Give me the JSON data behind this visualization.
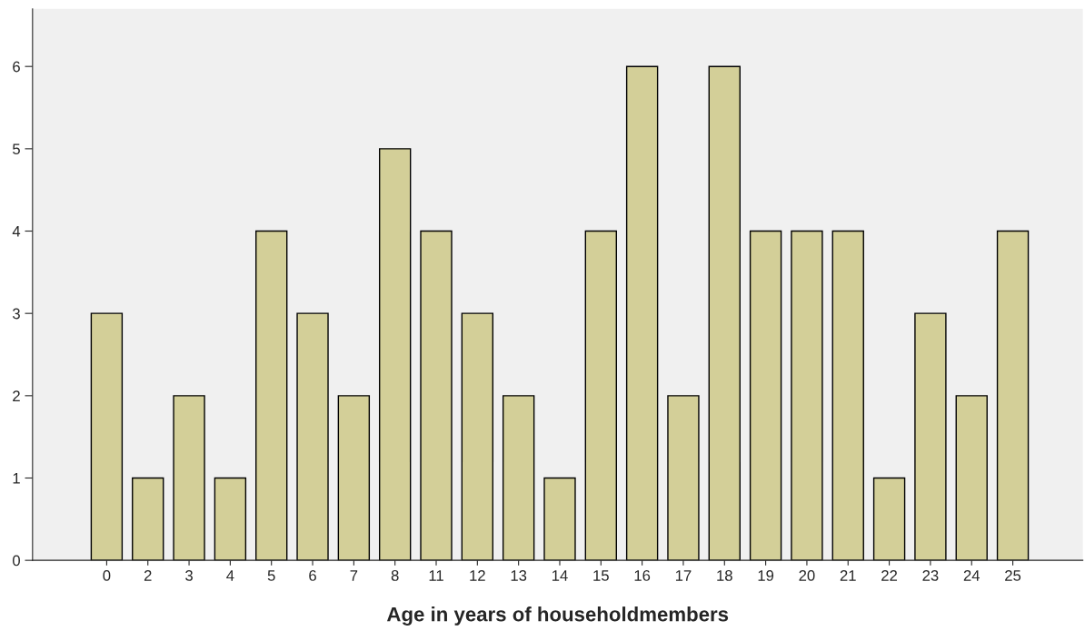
{
  "chart_data": {
    "type": "bar",
    "xlabel": "Age in years of householdmembers",
    "categories": [
      "0",
      "2",
      "3",
      "4",
      "5",
      "6",
      "7",
      "8",
      "11",
      "12",
      "13",
      "14",
      "15",
      "16",
      "17",
      "18",
      "19",
      "20",
      "21",
      "22",
      "23",
      "24",
      "25"
    ],
    "values": [
      3,
      1,
      2,
      1,
      4,
      3,
      2,
      5,
      4,
      3,
      2,
      1,
      4,
      6,
      2,
      6,
      4,
      4,
      4,
      1,
      3,
      2,
      4
    ],
    "color": "#d3cf98",
    "ylim": [
      0,
      6.7
    ],
    "yticks": [
      0,
      1,
      2,
      3,
      4,
      5,
      6
    ],
    "grid": false
  }
}
